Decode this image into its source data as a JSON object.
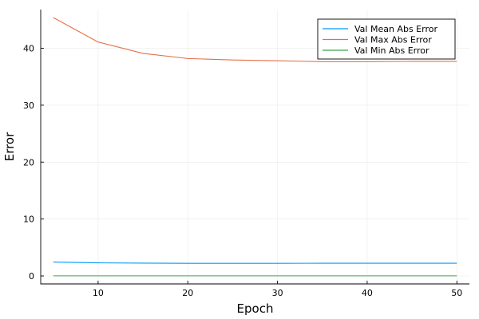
{
  "chart_data": {
    "type": "line",
    "title": "",
    "xlabel": "Epoch",
    "ylabel": "Error",
    "xlim": [
      3.6,
      51.4
    ],
    "ylim": [
      -1.4,
      46.8
    ],
    "xticks": [
      10,
      20,
      30,
      40,
      50
    ],
    "yticks": [
      0,
      10,
      20,
      30,
      40
    ],
    "grid": true,
    "legend_position": "top-right",
    "x": [
      5,
      10,
      15,
      20,
      25,
      30,
      35,
      40,
      45,
      50
    ],
    "series": [
      {
        "name": "Val Mean Abs Error",
        "color": "#009AFA",
        "values": [
          2.45,
          2.3,
          2.25,
          2.22,
          2.22,
          2.22,
          2.23,
          2.24,
          2.24,
          2.24
        ]
      },
      {
        "name": "Val Max Abs Error",
        "color": "#E36F47",
        "values": [
          45.4,
          41.1,
          39.1,
          38.2,
          37.95,
          37.8,
          37.65,
          37.65,
          37.7,
          37.7
        ]
      },
      {
        "name": "Val Min Abs Error",
        "color": "#3EA44E",
        "values": [
          0.02,
          0.02,
          0.02,
          0.02,
          0.02,
          0.02,
          0.02,
          0.02,
          0.02,
          0.02
        ]
      }
    ]
  }
}
